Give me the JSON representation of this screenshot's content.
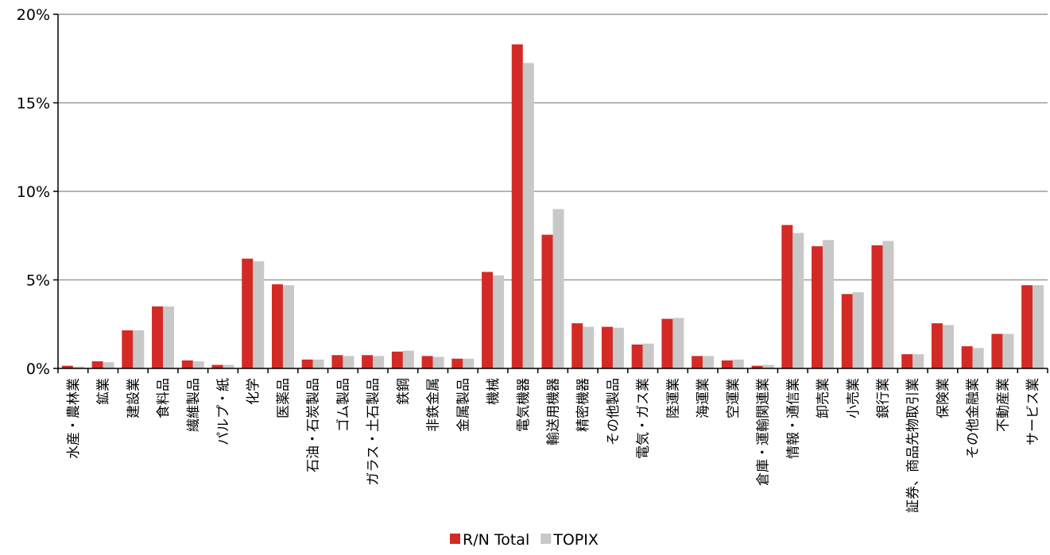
{
  "chart_data": {
    "type": "bar",
    "ylim": [
      0,
      20
    ],
    "yticks": [
      "0%",
      "5%",
      "10%",
      "15%",
      "20%"
    ],
    "categories": [
      "水産・農林業",
      "鉱業",
      "建設業",
      "食料品",
      "繊維製品",
      "パルプ・紙",
      "化学",
      "医薬品",
      "石油・石炭製品",
      "ゴム製品",
      "ガラス・土石製品",
      "鉄鋼",
      "非鉄金属",
      "金属製品",
      "機械",
      "電気機器",
      "輸送用機器",
      "精密機器",
      "その他製品",
      "電気・ガス業",
      "陸運業",
      "海運業",
      "空運業",
      "倉庫・運輸関連業",
      "情報・通信業",
      "卸売業",
      "小売業",
      "銀行業",
      "証券、商品先物取引業",
      "保険業",
      "その他金融業",
      "不動産業",
      "サービス業"
    ],
    "series": [
      {
        "name": "R/N Total",
        "color": "#d42a26",
        "values": [
          0.15,
          0.4,
          2.15,
          3.5,
          0.45,
          0.2,
          6.2,
          4.75,
          0.5,
          0.75,
          0.75,
          0.95,
          0.7,
          0.55,
          5.45,
          18.3,
          7.55,
          2.55,
          2.35,
          1.35,
          2.8,
          0.7,
          0.45,
          0.15,
          8.1,
          6.9,
          4.2,
          6.95,
          0.8,
          2.55,
          1.25,
          1.95,
          4.7
        ]
      },
      {
        "name": "TOPIX",
        "color": "#c8c8c8",
        "values": [
          0.1,
          0.35,
          2.15,
          3.5,
          0.4,
          0.2,
          6.05,
          4.7,
          0.5,
          0.7,
          0.7,
          1.0,
          0.65,
          0.55,
          5.25,
          17.25,
          9.0,
          2.35,
          2.3,
          1.4,
          2.85,
          0.7,
          0.5,
          0.2,
          7.65,
          7.25,
          4.3,
          7.2,
          0.8,
          2.45,
          1.15,
          1.95,
          4.7
        ]
      }
    ],
    "grid": true,
    "legend_position": "bottom-center"
  }
}
